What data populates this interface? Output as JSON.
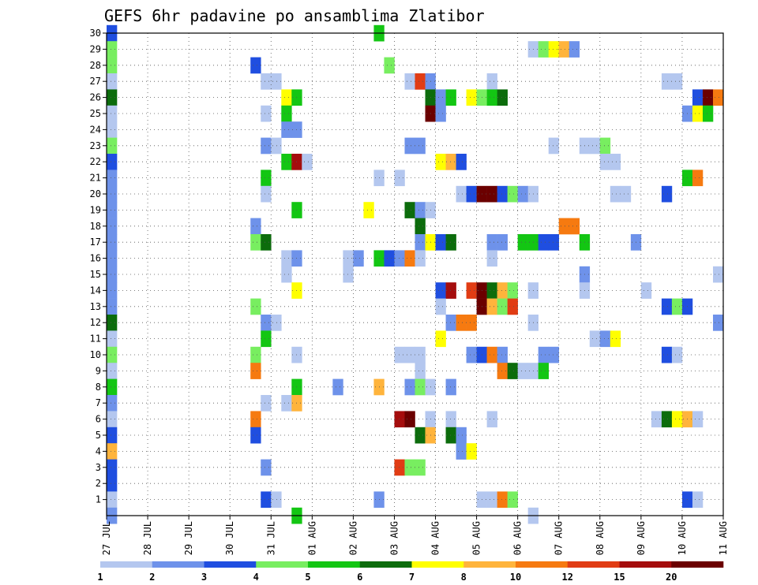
{
  "chart_data": {
    "type": "heatmap",
    "title": "GEFS 6hr padavine po ansamblima Zlatibor",
    "x_axis": {
      "unit": "6-hour steps from 27 JUL 00Z",
      "range": [
        0,
        60
      ],
      "tick_labels": [
        "27 JUL",
        "28 JUL",
        "29 JUL",
        "30 JUL",
        "31 JUL",
        "01 AUG",
        "02 AUG",
        "03 AUG",
        "04 AUG",
        "05 AUG",
        "06 AUG",
        "07 AUG",
        "08 AUG",
        "09 AUG",
        "10 AUG",
        "11 AUG"
      ]
    },
    "y_axis": {
      "label": "",
      "range": [
        0,
        30
      ],
      "tick_labels": [
        "1",
        "2",
        "3",
        "4",
        "5",
        "6",
        "7",
        "8",
        "9",
        "10",
        "11",
        "12",
        "13",
        "14",
        "15",
        "16",
        "17",
        "18",
        "19",
        "20",
        "21",
        "22",
        "23",
        "24",
        "25",
        "26",
        "27",
        "28",
        "29",
        "30"
      ]
    },
    "grid": true,
    "colorbar": {
      "position": "bottom",
      "labels": [
        "1",
        "2",
        "3",
        "4",
        "5",
        "6",
        "7",
        "8",
        "10",
        "12",
        "15",
        "20"
      ],
      "colors": [
        "#b4c7ef",
        "#6e92ea",
        "#1f4ee0",
        "#78ee60",
        "#13c613",
        "#0c6c0c",
        "#ffff00",
        "#ffb43c",
        "#f67a10",
        "#e13c14",
        "#a50d0d",
        "#6b0000"
      ]
    },
    "cells_format": "[member, time_step, color_class]",
    "cells": [
      [
        30,
        0,
        2
      ],
      [
        29,
        0,
        3
      ],
      [
        28,
        0,
        3
      ],
      [
        27,
        0,
        0
      ],
      [
        26,
        0,
        5
      ],
      [
        25,
        0,
        0
      ],
      [
        24,
        0,
        0
      ],
      [
        23,
        0,
        3
      ],
      [
        22,
        0,
        2
      ],
      [
        21,
        0,
        1
      ],
      [
        20,
        0,
        1
      ],
      [
        19,
        0,
        1
      ],
      [
        18,
        0,
        1
      ],
      [
        17,
        0,
        1
      ],
      [
        16,
        0,
        1
      ],
      [
        15,
        0,
        1
      ],
      [
        14,
        0,
        1
      ],
      [
        13,
        0,
        1
      ],
      [
        12,
        0,
        5
      ],
      [
        11,
        0,
        0
      ],
      [
        10,
        0,
        3
      ],
      [
        9,
        0,
        0
      ],
      [
        8,
        0,
        4
      ],
      [
        7,
        0,
        1
      ],
      [
        6,
        0,
        0
      ],
      [
        5,
        0,
        2
      ],
      [
        4,
        0,
        7
      ],
      [
        3,
        0,
        2
      ],
      [
        2,
        0,
        2
      ],
      [
        1,
        0,
        0
      ],
      [
        0,
        0,
        1
      ],
      [
        28,
        14,
        2
      ],
      [
        27,
        15,
        0
      ],
      [
        27,
        16,
        0
      ],
      [
        26,
        17,
        6
      ],
      [
        26,
        18,
        4
      ],
      [
        25,
        15,
        0
      ],
      [
        25,
        17,
        4
      ],
      [
        24,
        17,
        1
      ],
      [
        24,
        18,
        1
      ],
      [
        23,
        15,
        1
      ],
      [
        23,
        16,
        0
      ],
      [
        22,
        17,
        4
      ],
      [
        22,
        18,
        10
      ],
      [
        22,
        19,
        0
      ],
      [
        21,
        15,
        4
      ],
      [
        20,
        15,
        0
      ],
      [
        19,
        18,
        4
      ],
      [
        18,
        14,
        1
      ],
      [
        17,
        14,
        3
      ],
      [
        17,
        15,
        5
      ],
      [
        16,
        17,
        0
      ],
      [
        16,
        18,
        1
      ],
      [
        15,
        17,
        0
      ],
      [
        14,
        18,
        6
      ],
      [
        13,
        14,
        3
      ],
      [
        12,
        15,
        1
      ],
      [
        12,
        16,
        0
      ],
      [
        11,
        15,
        4
      ],
      [
        10,
        14,
        3
      ],
      [
        10,
        18,
        0
      ],
      [
        9,
        14,
        8
      ],
      [
        8,
        18,
        4
      ],
      [
        7,
        15,
        0
      ],
      [
        7,
        17,
        0
      ],
      [
        7,
        18,
        7
      ],
      [
        6,
        14,
        8
      ],
      [
        5,
        14,
        2
      ],
      [
        3,
        15,
        1
      ],
      [
        1,
        15,
        2
      ],
      [
        1,
        16,
        0
      ],
      [
        0,
        18,
        4
      ],
      [
        30,
        26,
        4
      ],
      [
        28,
        27,
        3
      ],
      [
        27,
        29,
        0
      ],
      [
        27,
        30,
        9
      ],
      [
        27,
        31,
        1
      ],
      [
        26,
        31,
        5
      ],
      [
        26,
        32,
        1
      ],
      [
        26,
        33,
        4
      ],
      [
        25,
        31,
        11
      ],
      [
        25,
        32,
        1
      ],
      [
        23,
        29,
        1
      ],
      [
        23,
        30,
        1
      ],
      [
        22,
        32,
        6
      ],
      [
        22,
        33,
        7
      ],
      [
        22,
        34,
        2
      ],
      [
        21,
        26,
        0
      ],
      [
        21,
        28,
        0
      ],
      [
        19,
        25,
        6
      ],
      [
        19,
        29,
        5
      ],
      [
        19,
        30,
        1
      ],
      [
        19,
        31,
        0
      ],
      [
        18,
        30,
        5
      ],
      [
        17,
        30,
        1
      ],
      [
        17,
        31,
        6
      ],
      [
        17,
        32,
        2
      ],
      [
        17,
        33,
        5
      ],
      [
        16,
        23,
        0
      ],
      [
        16,
        24,
        1
      ],
      [
        16,
        26,
        4
      ],
      [
        16,
        27,
        2
      ],
      [
        16,
        28,
        1
      ],
      [
        16,
        29,
        8
      ],
      [
        16,
        30,
        0
      ],
      [
        15,
        23,
        0
      ],
      [
        14,
        32,
        2
      ],
      [
        14,
        33,
        10
      ],
      [
        13,
        32,
        0
      ],
      [
        12,
        33,
        1
      ],
      [
        12,
        34,
        8
      ],
      [
        11,
        32,
        6
      ],
      [
        10,
        28,
        0
      ],
      [
        10,
        29,
        0
      ],
      [
        10,
        30,
        0
      ],
      [
        9,
        30,
        0
      ],
      [
        8,
        22,
        1
      ],
      [
        8,
        26,
        7
      ],
      [
        8,
        29,
        1
      ],
      [
        8,
        30,
        3
      ],
      [
        8,
        31,
        0
      ],
      [
        8,
        33,
        1
      ],
      [
        6,
        28,
        10
      ],
      [
        6,
        29,
        11
      ],
      [
        6,
        31,
        0
      ],
      [
        6,
        33,
        0
      ],
      [
        5,
        30,
        5
      ],
      [
        5,
        31,
        7
      ],
      [
        5,
        33,
        5
      ],
      [
        5,
        34,
        1
      ],
      [
        4,
        34,
        1
      ],
      [
        4,
        35,
        6
      ],
      [
        3,
        28,
        9
      ],
      [
        3,
        29,
        3
      ],
      [
        3,
        30,
        3
      ],
      [
        1,
        26,
        1
      ],
      [
        29,
        41,
        0
      ],
      [
        29,
        42,
        3
      ],
      [
        29,
        43,
        6
      ],
      [
        29,
        44,
        7
      ],
      [
        29,
        45,
        1
      ],
      [
        27,
        37,
        0
      ],
      [
        26,
        35,
        6
      ],
      [
        26,
        36,
        3
      ],
      [
        26,
        37,
        4
      ],
      [
        26,
        38,
        5
      ],
      [
        23,
        43,
        0
      ],
      [
        23,
        46,
        0
      ],
      [
        23,
        47,
        0
      ],
      [
        23,
        48,
        3
      ],
      [
        22,
        48,
        0
      ],
      [
        22,
        49,
        0
      ],
      [
        20,
        34,
        0
      ],
      [
        20,
        35,
        2
      ],
      [
        20,
        36,
        11
      ],
      [
        20,
        37,
        11
      ],
      [
        20,
        38,
        2
      ],
      [
        20,
        39,
        3
      ],
      [
        20,
        40,
        1
      ],
      [
        20,
        41,
        0
      ],
      [
        20,
        49,
        0
      ],
      [
        20,
        50,
        0
      ],
      [
        18,
        44,
        8
      ],
      [
        18,
        45,
        8
      ],
      [
        17,
        37,
        1
      ],
      [
        17,
        38,
        1
      ],
      [
        17,
        40,
        4
      ],
      [
        17,
        41,
        4
      ],
      [
        17,
        42,
        2
      ],
      [
        17,
        43,
        2
      ],
      [
        17,
        46,
        4
      ],
      [
        17,
        51,
        1
      ],
      [
        16,
        37,
        0
      ],
      [
        15,
        46,
        1
      ],
      [
        14,
        35,
        9
      ],
      [
        14,
        36,
        11
      ],
      [
        14,
        37,
        5
      ],
      [
        14,
        38,
        7
      ],
      [
        14,
        39,
        3
      ],
      [
        14,
        41,
        0
      ],
      [
        14,
        46,
        0
      ],
      [
        13,
        36,
        11
      ],
      [
        13,
        37,
        7
      ],
      [
        13,
        38,
        3
      ],
      [
        13,
        39,
        9
      ],
      [
        12,
        35,
        8
      ],
      [
        12,
        41,
        0
      ],
      [
        11,
        47,
        0
      ],
      [
        11,
        48,
        1
      ],
      [
        11,
        49,
        6
      ],
      [
        10,
        35,
        1
      ],
      [
        10,
        36,
        2
      ],
      [
        10,
        37,
        8
      ],
      [
        10,
        38,
        1
      ],
      [
        10,
        42,
        1
      ],
      [
        10,
        43,
        1
      ],
      [
        9,
        38,
        8
      ],
      [
        9,
        39,
        5
      ],
      [
        9,
        40,
        0
      ],
      [
        9,
        41,
        0
      ],
      [
        9,
        42,
        4
      ],
      [
        6,
        37,
        0
      ],
      [
        1,
        36,
        0
      ],
      [
        1,
        37,
        0
      ],
      [
        1,
        38,
        8
      ],
      [
        1,
        39,
        3
      ],
      [
        0,
        41,
        0
      ],
      [
        27,
        54,
        0
      ],
      [
        27,
        55,
        0
      ],
      [
        26,
        57,
        2
      ],
      [
        26,
        58,
        11
      ],
      [
        26,
        59,
        8
      ],
      [
        25,
        56,
        1
      ],
      [
        25,
        57,
        6
      ],
      [
        25,
        58,
        4
      ],
      [
        21,
        56,
        4
      ],
      [
        21,
        57,
        8
      ],
      [
        20,
        54,
        2
      ],
      [
        15,
        59,
        0
      ],
      [
        14,
        52,
        0
      ],
      [
        13,
        54,
        2
      ],
      [
        13,
        55,
        3
      ],
      [
        13,
        56,
        2
      ],
      [
        12,
        59,
        1
      ],
      [
        10,
        54,
        2
      ],
      [
        10,
        55,
        0
      ],
      [
        6,
        53,
        0
      ],
      [
        6,
        54,
        5
      ],
      [
        6,
        55,
        6
      ],
      [
        6,
        56,
        7
      ],
      [
        6,
        57,
        0
      ],
      [
        1,
        56,
        2
      ],
      [
        1,
        57,
        0
      ]
    ]
  }
}
